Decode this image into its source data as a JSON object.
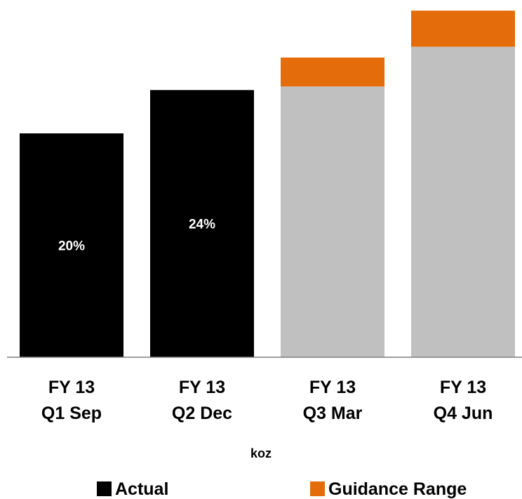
{
  "chart_data": {
    "type": "bar",
    "stacked": true,
    "categories": [
      [
        "FY 13",
        "Q1 Sep"
      ],
      [
        "FY 13",
        "Q2 Dec"
      ],
      [
        "FY 13",
        "Q3 Mar"
      ],
      [
        "FY 13",
        "Q4 Jun"
      ]
    ],
    "series": [
      {
        "name": "Actual",
        "values": [
          31,
          37,
          null,
          null
        ],
        "color": "#000000"
      },
      {
        "values": [
          null,
          null,
          37.5,
          43
        ],
        "color": "#c0c0c0"
      },
      {
        "name": "Guidance Range",
        "values": [
          0,
          0,
          4,
          5
        ],
        "color": "#e46c0a"
      }
    ],
    "data_labels": [
      "20%",
      "24%",
      "",
      ""
    ],
    "xlabel": "koz",
    "ylim": [
      0,
      48.5
    ],
    "grid": false,
    "legend": "bottom"
  }
}
